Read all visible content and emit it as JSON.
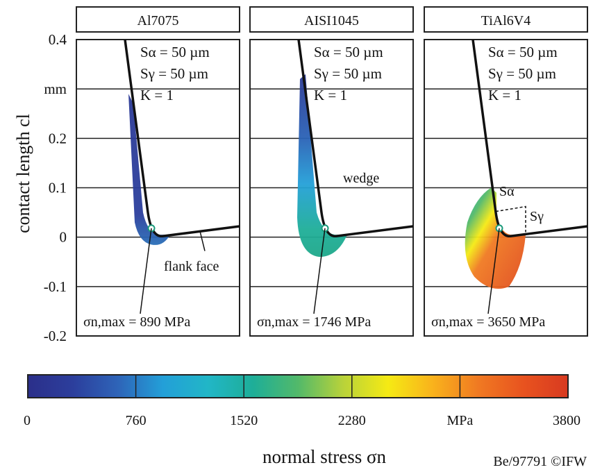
{
  "chart_data": {
    "type": "heatmap",
    "panels": [
      {
        "title": "Al7075",
        "s_alpha": "Sα = 50 µm",
        "s_gamma": "Sγ = 50 µm",
        "k": "K = 1",
        "sigma_max_label": "σn,max = 890 MPa",
        "sigma_max_MPa": 890,
        "annotations": [
          "flank face"
        ]
      },
      {
        "title": "AISI1045",
        "s_alpha": "Sα = 50 µm",
        "s_gamma": "Sγ = 50 µm",
        "k": "K = 1",
        "sigma_max_label": "σn,max = 1746 MPa",
        "sigma_max_MPa": 1746,
        "annotations": [
          "wedge"
        ]
      },
      {
        "title": "TiAl6V4",
        "s_alpha": "Sα = 50 µm",
        "s_gamma": "Sγ = 50 µm",
        "k": "K = 1",
        "sigma_max_label": "σn,max = 3650 MPa",
        "sigma_max_MPa": 3650,
        "annotations": [
          "Sα",
          "Sγ"
        ]
      }
    ],
    "ylabel": "contact length cl",
    "yunit": "mm",
    "ylim": [
      -0.2,
      0.4
    ],
    "yticks": [
      "0.4",
      "mm",
      "0.2",
      "0.1",
      "0",
      "-0.1",
      "-0.2"
    ],
    "colorbar": {
      "label": "normal stress σn",
      "unit": "MPa",
      "range": [
        0,
        3800
      ],
      "ticks": [
        "0",
        "760",
        "1520",
        "2280",
        "MPa",
        "3800"
      ],
      "colors": [
        "#2b2f8a",
        "#2c3e9c",
        "#2e64b8",
        "#239fd8",
        "#21b6c7",
        "#1eae98",
        "#52b96a",
        "#b8d23a",
        "#f5ea14",
        "#f9b21c",
        "#f07a22",
        "#e8531f",
        "#d83a20"
      ]
    },
    "grid": true,
    "credit": "Be/97791 ©IFW"
  }
}
